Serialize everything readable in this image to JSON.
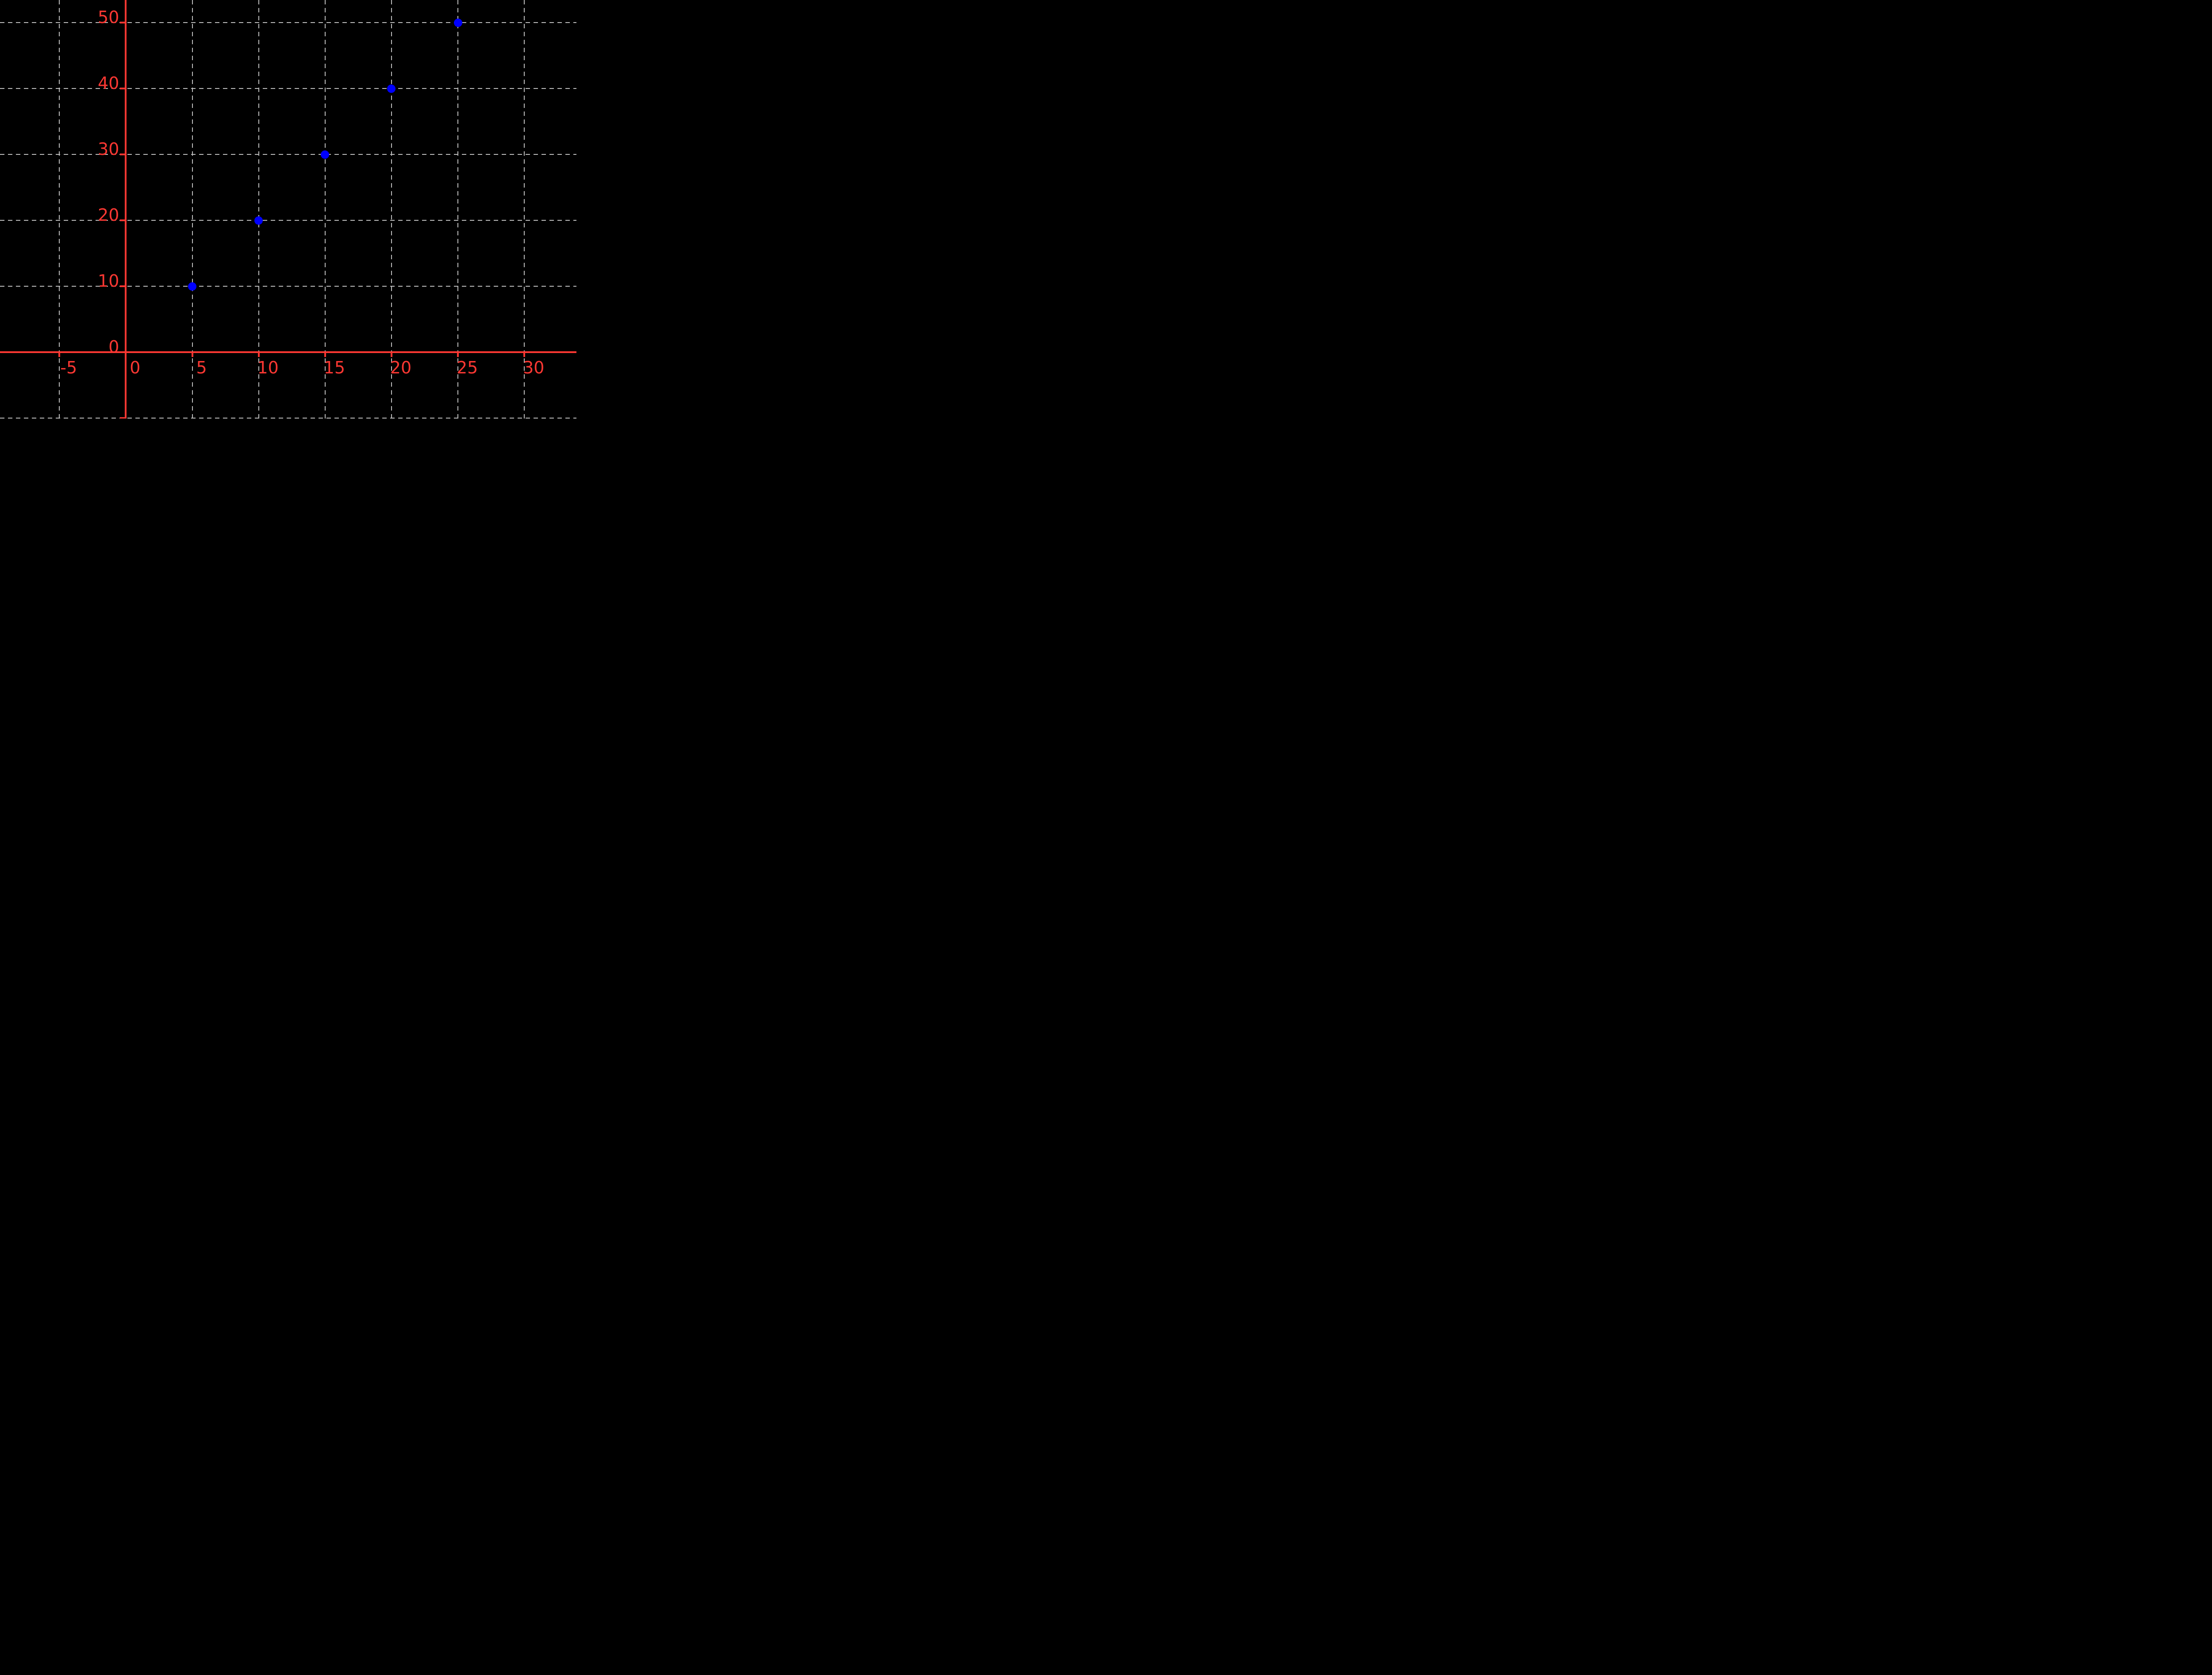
{
  "chart_data": {
    "type": "scatter",
    "title": "",
    "xlabel": "",
    "ylabel": "",
    "points": [
      {
        "x": 5,
        "y": 10
      },
      {
        "x": 10,
        "y": 20
      },
      {
        "x": 15,
        "y": 30
      },
      {
        "x": 20,
        "y": 40
      },
      {
        "x": 25,
        "y": 50
      }
    ],
    "x_ticks": [
      {
        "value": -5,
        "label": "-5"
      },
      {
        "value": 0,
        "label": "0"
      },
      {
        "value": 5,
        "label": "5"
      },
      {
        "value": 10,
        "label": "10"
      },
      {
        "value": 15,
        "label": "15"
      },
      {
        "value": 20,
        "label": "20"
      },
      {
        "value": 25,
        "label": "25"
      },
      {
        "value": 30,
        "label": "30"
      }
    ],
    "y_ticks": [
      {
        "value": 0,
        "label": "0"
      },
      {
        "value": 10,
        "label": "10"
      },
      {
        "value": 20,
        "label": "20"
      },
      {
        "value": 30,
        "label": "30"
      },
      {
        "value": 40,
        "label": "40"
      },
      {
        "value": 50,
        "label": "50"
      }
    ],
    "x_gridlines": [
      -5,
      0,
      5,
      10,
      15,
      20,
      25,
      30
    ],
    "y_gridlines": [
      -10,
      0,
      10,
      20,
      30,
      40,
      50
    ],
    "x_tick_marks": [
      -5,
      0,
      5,
      10,
      15,
      20,
      25,
      30
    ],
    "y_tick_marks": [
      -10,
      0,
      10,
      20,
      30,
      40,
      50
    ],
    "xlim": [
      -9.47,
      33.92
    ],
    "ylim": [
      -10.05,
      53.45
    ],
    "grid": true,
    "legend": "none",
    "colors": {
      "background": "#000000",
      "axis": "#fa3732",
      "tick_labels": "#fa3732",
      "grid": "#bdbdbd",
      "points": "#0000ff"
    }
  }
}
